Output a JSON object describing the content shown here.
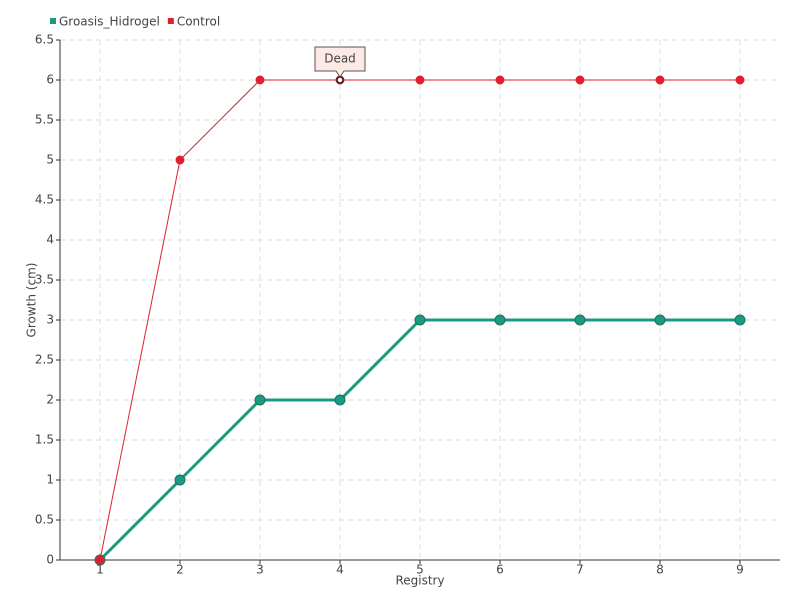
{
  "chart_data": {
    "type": "line",
    "x_label": "Registry",
    "y_label": "Growth (cm)",
    "x": [
      1,
      2,
      3,
      4,
      5,
      6,
      7,
      8,
      9
    ],
    "xlim": [
      0.5,
      9.5
    ],
    "xticks": [
      1,
      2,
      3,
      4,
      5,
      6,
      7,
      8,
      9
    ],
    "ylim": [
      0,
      6.5
    ],
    "yticks": [
      0,
      0.5,
      1,
      1.5,
      2,
      2.5,
      3,
      3.5,
      4,
      4.5,
      5,
      5.5,
      6,
      6.5
    ],
    "grid": true,
    "legend": "top-left",
    "series": [
      {
        "name": "Groasis_Hidrogel",
        "color": "#1a9a80",
        "values": [
          0,
          1,
          2,
          2,
          3,
          3,
          3,
          3,
          3
        ]
      },
      {
        "name": "Control",
        "color": "#e0202e",
        "values": [
          0,
          5,
          6,
          6,
          6,
          6,
          6,
          6,
          6
        ]
      }
    ],
    "annotations": [
      {
        "text": "Dead",
        "x": 4,
        "y": 6
      }
    ]
  }
}
